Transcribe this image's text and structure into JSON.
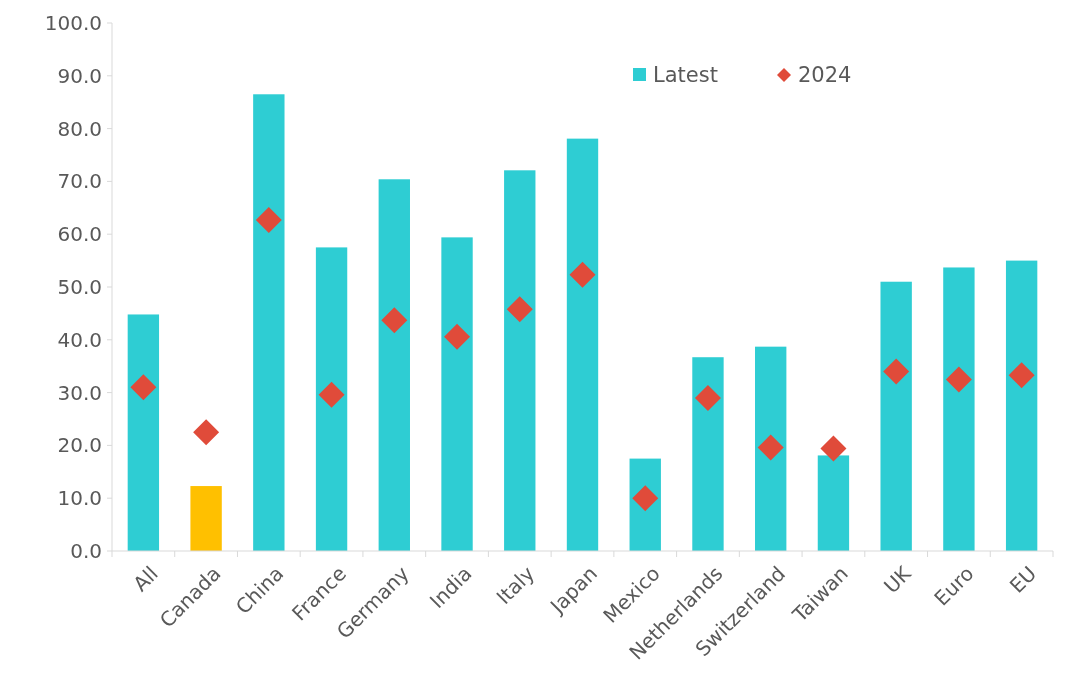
{
  "chart_data": {
    "type": "bar",
    "categories": [
      "All",
      "Canada",
      "China",
      "France",
      "Germany",
      "India",
      "Italy",
      "Japan",
      "Mexico",
      "Netherlands",
      "Switzerland",
      "Taiwan",
      "UK",
      "Euro",
      "EU"
    ],
    "series": [
      {
        "name": "Latest",
        "color": "#2ecdd3",
        "colors": [
          "#2ecdd3",
          "#ffc000",
          "#2ecdd3",
          "#2ecdd3",
          "#2ecdd3",
          "#2ecdd3",
          "#2ecdd3",
          "#2ecdd3",
          "#2ecdd3",
          "#2ecdd3",
          "#2ecdd3",
          "#2ecdd3",
          "#2ecdd3",
          "#2ecdd3",
          "#2ecdd3"
        ],
        "values": [
          44.8,
          12.3,
          86.5,
          57.5,
          70.4,
          59.4,
          72.1,
          78.1,
          17.5,
          36.7,
          38.7,
          18.1,
          51.0,
          53.7,
          55.0
        ]
      },
      {
        "name": "2024",
        "type": "scatter",
        "marker": "diamond",
        "color": "#e04b3a",
        "values": [
          31.0,
          22.5,
          62.7,
          29.6,
          43.7,
          40.6,
          45.8,
          52.3,
          10.0,
          29.0,
          19.6,
          19.4,
          34.0,
          32.5,
          33.3
        ]
      }
    ],
    "ylim": [
      0,
      100
    ],
    "yticks": [
      {
        "value": 0,
        "label": "0.0"
      },
      {
        "value": 10,
        "label": "10.0"
      },
      {
        "value": 20,
        "label": "20.0"
      },
      {
        "value": 30,
        "label": "30.0"
      },
      {
        "value": 40,
        "label": "40.0"
      },
      {
        "value": 50,
        "label": "50.0"
      },
      {
        "value": 60,
        "label": "60.0"
      },
      {
        "value": 70,
        "label": "70.0"
      },
      {
        "value": 80,
        "label": "80.0"
      },
      {
        "value": 90,
        "label": "90.0"
      },
      {
        "value": 100,
        "label": "100.0"
      }
    ],
    "grid": false,
    "legend": "top right"
  }
}
